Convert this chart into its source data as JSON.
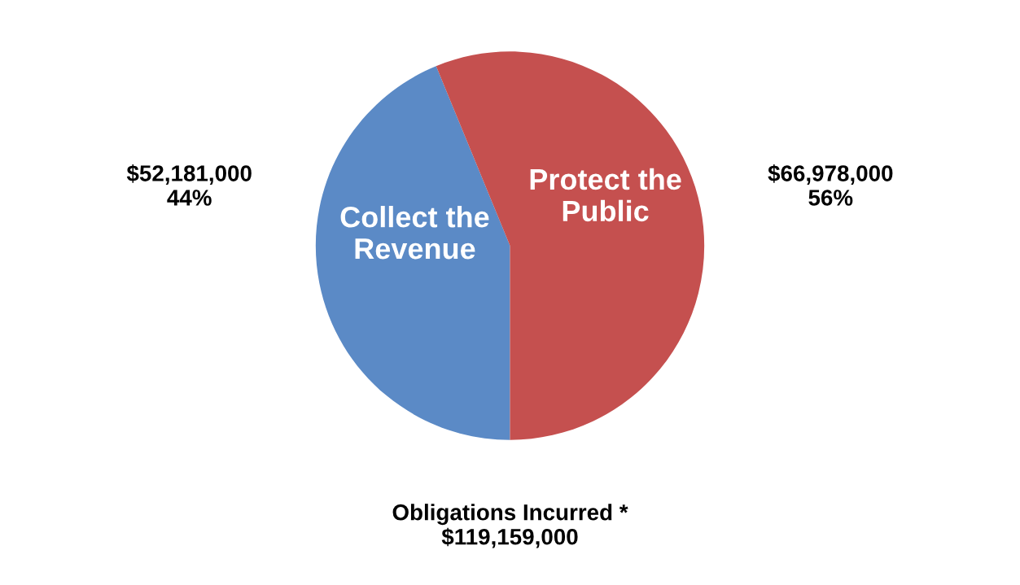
{
  "chart_data": {
    "type": "pie",
    "categories": [
      "Collect the Revenue",
      "Protect the Public"
    ],
    "values": [
      52181000,
      66978000
    ],
    "colors": [
      "#5b8ac6",
      "#c5504f"
    ],
    "value_labels": [
      "$52,181,000\n44%",
      "$66,978,000\n56%"
    ],
    "annotations": [
      "Obligations Incurred *\n$119,159,000"
    ]
  }
}
